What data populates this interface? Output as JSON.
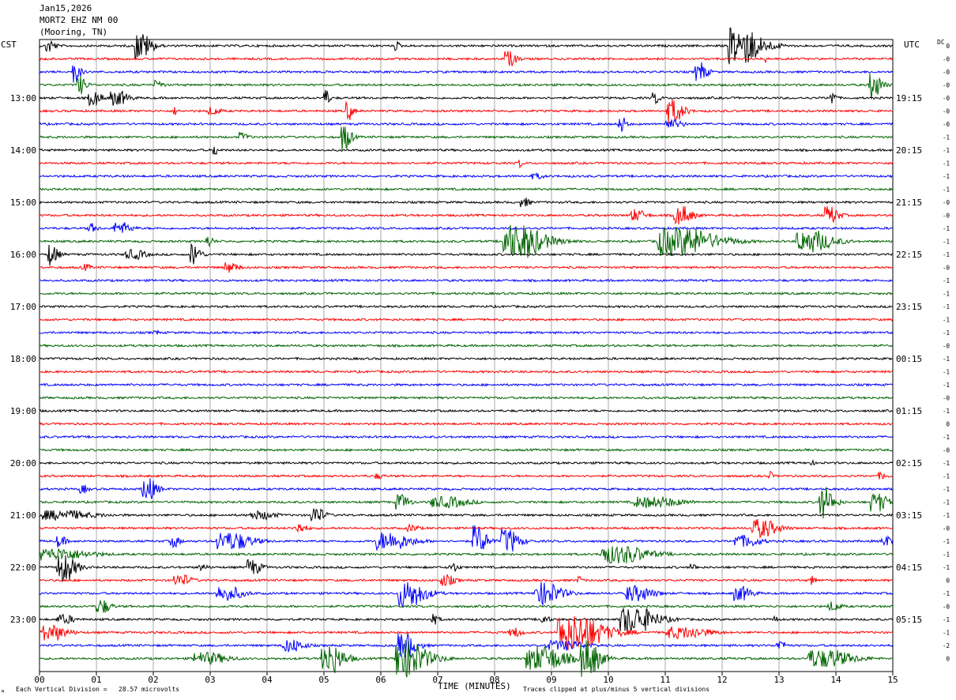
{
  "header": {
    "date": "Jan15,2026",
    "station": "MORT2 EHZ NM 00",
    "location": "(Mooring, TN)"
  },
  "left_timezone": "CST",
  "right_timezone": "UTC",
  "dc_label": "DC",
  "footer": {
    "division_note": "Each Vertical Division =   28.57 microvolts",
    "clip_note": "Traces clipped at plus/minus 5 vertical divisions",
    "logo_mark": "¤"
  },
  "chart_data": {
    "type": "line",
    "title": "",
    "xlabel": "TIME (MINUTES)",
    "x_ticks": [
      "00",
      "01",
      "02",
      "03",
      "04",
      "05",
      "06",
      "07",
      "08",
      "09",
      "10",
      "11",
      "12",
      "13",
      "14",
      "15"
    ],
    "xlim": [
      0,
      15
    ],
    "row_count": 48,
    "row_minutes": 15,
    "row_colors": [
      "#000000",
      "#ff0000",
      "#0000ff",
      "#006400"
    ],
    "left_hour_labels": [
      {
        "row": 4,
        "label": "13:00"
      },
      {
        "row": 8,
        "label": "14:00"
      },
      {
        "row": 12,
        "label": "15:00"
      },
      {
        "row": 16,
        "label": "16:00"
      },
      {
        "row": 20,
        "label": "17:00"
      },
      {
        "row": 24,
        "label": "18:00"
      },
      {
        "row": 28,
        "label": "19:00"
      },
      {
        "row": 32,
        "label": "20:00"
      },
      {
        "row": 36,
        "label": "21:00"
      },
      {
        "row": 40,
        "label": "22:00"
      },
      {
        "row": 44,
        "label": "23:00"
      }
    ],
    "right_hour_labels": [
      {
        "row": 4,
        "label": "19:15"
      },
      {
        "row": 8,
        "label": "20:15"
      },
      {
        "row": 12,
        "label": "21:15"
      },
      {
        "row": 16,
        "label": "22:15"
      },
      {
        "row": 20,
        "label": "23:15"
      },
      {
        "row": 24,
        "label": "00:15"
      },
      {
        "row": 28,
        "label": "01:15"
      },
      {
        "row": 32,
        "label": "02:15"
      },
      {
        "row": 36,
        "label": "03:15"
      },
      {
        "row": 40,
        "label": "04:15"
      },
      {
        "row": 44,
        "label": "05:15"
      }
    ],
    "dc_offsets": [
      "0",
      "-0",
      "-0",
      "-0",
      "-0",
      "-0",
      "-0",
      "-1",
      "-1",
      "-1",
      "-1",
      "-1",
      "-0",
      "-0",
      "-1",
      "-1",
      "-1",
      "-0",
      "-1",
      "-1",
      "-1",
      "-1",
      "-1",
      "-0",
      "-1",
      "-1",
      "-1",
      "-0",
      "-1",
      "0",
      "-1",
      "-0",
      "-1",
      "-1",
      "-1",
      "-1",
      "-1",
      "-0",
      "-1",
      "-1",
      "-1",
      "0",
      "-1",
      "-0",
      "-1",
      "-1",
      "-2",
      "0"
    ],
    "events": [
      {
        "row": 0,
        "minute": 0.2,
        "amp": 1.2,
        "dur": 0.2
      },
      {
        "row": 0,
        "minute": 1.85,
        "amp": 2.2,
        "dur": 0.35
      },
      {
        "row": 0,
        "minute": 6.3,
        "amp": 0.8,
        "dur": 0.1
      },
      {
        "row": 0,
        "minute": 12.45,
        "amp": 3.5,
        "dur": 0.7
      },
      {
        "row": 1,
        "minute": 8.3,
        "amp": 1.3,
        "dur": 0.25
      },
      {
        "row": 1,
        "minute": 12.8,
        "amp": 0.7,
        "dur": 0.1
      },
      {
        "row": 2,
        "minute": 0.65,
        "amp": 2.0,
        "dur": 0.15
      },
      {
        "row": 2,
        "minute": 11.65,
        "amp": 1.6,
        "dur": 0.25
      },
      {
        "row": 3,
        "minute": 0.75,
        "amp": 1.5,
        "dur": 0.2
      },
      {
        "row": 3,
        "minute": 2.1,
        "amp": 0.8,
        "dur": 0.2
      },
      {
        "row": 3,
        "minute": 14.7,
        "amp": 2.4,
        "dur": 0.25
      },
      {
        "row": 4,
        "minute": 1.0,
        "amp": 1.2,
        "dur": 0.3
      },
      {
        "row": 4,
        "minute": 1.45,
        "amp": 1.2,
        "dur": 0.4
      },
      {
        "row": 4,
        "minute": 5.05,
        "amp": 1.5,
        "dur": 0.1
      },
      {
        "row": 4,
        "minute": 10.85,
        "amp": 1.0,
        "dur": 0.15
      },
      {
        "row": 4,
        "minute": 13.95,
        "amp": 1.3,
        "dur": 0.1
      },
      {
        "row": 5,
        "minute": 2.4,
        "amp": 0.7,
        "dur": 0.1
      },
      {
        "row": 5,
        "minute": 3.1,
        "amp": 0.7,
        "dur": 0.3
      },
      {
        "row": 5,
        "minute": 5.45,
        "amp": 1.6,
        "dur": 0.15
      },
      {
        "row": 5,
        "minute": 11.2,
        "amp": 2.0,
        "dur": 0.35
      },
      {
        "row": 6,
        "minute": 10.25,
        "amp": 1.5,
        "dur": 0.15
      },
      {
        "row": 6,
        "minute": 11.2,
        "amp": 0.8,
        "dur": 0.4
      },
      {
        "row": 7,
        "minute": 3.6,
        "amp": 0.8,
        "dur": 0.2
      },
      {
        "row": 7,
        "minute": 5.4,
        "amp": 2.2,
        "dur": 0.2
      },
      {
        "row": 8,
        "minute": 3.1,
        "amp": 1.0,
        "dur": 0.1
      },
      {
        "row": 9,
        "minute": 8.45,
        "amp": 0.8,
        "dur": 0.1
      },
      {
        "row": 10,
        "minute": 8.8,
        "amp": 0.5,
        "dur": 0.3
      },
      {
        "row": 12,
        "minute": 8.55,
        "amp": 0.8,
        "dur": 0.2
      },
      {
        "row": 13,
        "minute": 10.55,
        "amp": 1.0,
        "dur": 0.35
      },
      {
        "row": 13,
        "minute": 11.35,
        "amp": 1.5,
        "dur": 0.4
      },
      {
        "row": 13,
        "minute": 13.95,
        "amp": 1.5,
        "dur": 0.3
      },
      {
        "row": 14,
        "minute": 0.95,
        "amp": 0.8,
        "dur": 0.2
      },
      {
        "row": 14,
        "minute": 1.5,
        "amp": 1.0,
        "dur": 0.4
      },
      {
        "row": 15,
        "minute": 3.0,
        "amp": 1.0,
        "dur": 0.15
      },
      {
        "row": 15,
        "minute": 8.6,
        "amp": 2.8,
        "dur": 0.9
      },
      {
        "row": 15,
        "minute": 11.5,
        "amp": 2.3,
        "dur": 1.3
      },
      {
        "row": 15,
        "minute": 13.7,
        "amp": 1.8,
        "dur": 0.8
      },
      {
        "row": 16,
        "minute": 0.25,
        "amp": 1.8,
        "dur": 0.2
      },
      {
        "row": 16,
        "minute": 1.75,
        "amp": 0.8,
        "dur": 0.5
      },
      {
        "row": 16,
        "minute": 2.75,
        "amp": 2.0,
        "dur": 0.2
      },
      {
        "row": 17,
        "minute": 0.85,
        "amp": 0.6,
        "dur": 0.2
      },
      {
        "row": 17,
        "minute": 3.4,
        "amp": 0.9,
        "dur": 0.3
      },
      {
        "row": 22,
        "minute": 2.05,
        "amp": 0.6,
        "dur": 0.1
      },
      {
        "row": 32,
        "minute": 13.6,
        "amp": 0.4,
        "dur": 0.1
      },
      {
        "row": 33,
        "minute": 6.0,
        "amp": 0.5,
        "dur": 0.2
      },
      {
        "row": 33,
        "minute": 12.85,
        "amp": 0.8,
        "dur": 0.1
      },
      {
        "row": 33,
        "minute": 14.85,
        "amp": 0.6,
        "dur": 0.2
      },
      {
        "row": 34,
        "minute": 0.8,
        "amp": 0.7,
        "dur": 0.2
      },
      {
        "row": 34,
        "minute": 1.95,
        "amp": 2.0,
        "dur": 0.3
      },
      {
        "row": 35,
        "minute": 6.4,
        "amp": 1.3,
        "dur": 0.3
      },
      {
        "row": 35,
        "minute": 7.3,
        "amp": 0.9,
        "dur": 0.9
      },
      {
        "row": 35,
        "minute": 11.0,
        "amp": 0.9,
        "dur": 1.1
      },
      {
        "row": 35,
        "minute": 13.85,
        "amp": 2.6,
        "dur": 0.3
      },
      {
        "row": 35,
        "minute": 14.8,
        "amp": 1.5,
        "dur": 0.4
      },
      {
        "row": 36,
        "minute": 0.6,
        "amp": 0.8,
        "dur": 1.4
      },
      {
        "row": 36,
        "minute": 4.0,
        "amp": 0.7,
        "dur": 0.6
      },
      {
        "row": 36,
        "minute": 4.9,
        "amp": 1.5,
        "dur": 0.3
      },
      {
        "row": 37,
        "minute": 4.6,
        "amp": 0.9,
        "dur": 0.3
      },
      {
        "row": 37,
        "minute": 6.6,
        "amp": 0.6,
        "dur": 0.3
      },
      {
        "row": 37,
        "minute": 12.8,
        "amp": 1.5,
        "dur": 0.6
      },
      {
        "row": 38,
        "minute": 0.4,
        "amp": 1.0,
        "dur": 0.2
      },
      {
        "row": 38,
        "minute": 2.4,
        "amp": 1.0,
        "dur": 0.2
      },
      {
        "row": 38,
        "minute": 3.5,
        "amp": 1.5,
        "dur": 0.8
      },
      {
        "row": 38,
        "minute": 6.3,
        "amp": 1.5,
        "dur": 0.8
      },
      {
        "row": 38,
        "minute": 7.75,
        "amp": 2.5,
        "dur": 0.3
      },
      {
        "row": 38,
        "minute": 8.3,
        "amp": 2.0,
        "dur": 0.4
      },
      {
        "row": 38,
        "minute": 12.5,
        "amp": 1.0,
        "dur": 0.6
      },
      {
        "row": 38,
        "minute": 14.9,
        "amp": 1.0,
        "dur": 0.2
      },
      {
        "row": 39,
        "minute": 0.5,
        "amp": 1.0,
        "dur": 1.4
      },
      {
        "row": 39,
        "minute": 10.4,
        "amp": 1.5,
        "dur": 1.1
      },
      {
        "row": 40,
        "minute": 0.5,
        "amp": 2.4,
        "dur": 0.4
      },
      {
        "row": 40,
        "minute": 2.9,
        "amp": 0.6,
        "dur": 0.2
      },
      {
        "row": 40,
        "minute": 3.8,
        "amp": 1.3,
        "dur": 0.3
      },
      {
        "row": 40,
        "minute": 7.3,
        "amp": 0.8,
        "dur": 0.2
      },
      {
        "row": 40,
        "minute": 11.5,
        "amp": 0.6,
        "dur": 0.2
      },
      {
        "row": 41,
        "minute": 2.55,
        "amp": 1.0,
        "dur": 0.4
      },
      {
        "row": 41,
        "minute": 7.2,
        "amp": 1.0,
        "dur": 0.3
      },
      {
        "row": 41,
        "minute": 9.5,
        "amp": 0.7,
        "dur": 0.1
      },
      {
        "row": 41,
        "minute": 13.6,
        "amp": 1.0,
        "dur": 0.1
      },
      {
        "row": 42,
        "minute": 3.4,
        "amp": 1.2,
        "dur": 0.6
      },
      {
        "row": 42,
        "minute": 6.6,
        "amp": 2.2,
        "dur": 0.6
      },
      {
        "row": 42,
        "minute": 9.0,
        "amp": 1.8,
        "dur": 0.6
      },
      {
        "row": 42,
        "minute": 10.6,
        "amp": 1.3,
        "dur": 0.6
      },
      {
        "row": 42,
        "minute": 12.4,
        "amp": 1.2,
        "dur": 0.4
      },
      {
        "row": 43,
        "minute": 1.15,
        "amp": 1.2,
        "dur": 0.3
      },
      {
        "row": 43,
        "minute": 14.0,
        "amp": 0.8,
        "dur": 0.3
      },
      {
        "row": 44,
        "minute": 0.5,
        "amp": 0.8,
        "dur": 0.4
      },
      {
        "row": 44,
        "minute": 6.95,
        "amp": 0.9,
        "dur": 0.2
      },
      {
        "row": 44,
        "minute": 8.9,
        "amp": 0.8,
        "dur": 0.2
      },
      {
        "row": 44,
        "minute": 10.6,
        "amp": 2.2,
        "dur": 0.8
      },
      {
        "row": 44,
        "minute": 12.95,
        "amp": 0.6,
        "dur": 0.1
      },
      {
        "row": 45,
        "minute": 0.3,
        "amp": 1.3,
        "dur": 0.6
      },
      {
        "row": 45,
        "minute": 8.4,
        "amp": 0.8,
        "dur": 0.3
      },
      {
        "row": 45,
        "minute": 9.6,
        "amp": 3.2,
        "dur": 1.0
      },
      {
        "row": 45,
        "minute": 11.5,
        "amp": 1.0,
        "dur": 1.0
      },
      {
        "row": 46,
        "minute": 4.5,
        "amp": 1.1,
        "dur": 0.5
      },
      {
        "row": 46,
        "minute": 6.5,
        "amp": 2.0,
        "dur": 0.4
      },
      {
        "row": 46,
        "minute": 9.4,
        "amp": 0.8,
        "dur": 1.0
      },
      {
        "row": 46,
        "minute": 13.05,
        "amp": 0.9,
        "dur": 0.2
      },
      {
        "row": 47,
        "minute": 3.1,
        "amp": 1.0,
        "dur": 0.8
      },
      {
        "row": 47,
        "minute": 5.2,
        "amp": 2.4,
        "dur": 0.5
      },
      {
        "row": 47,
        "minute": 6.6,
        "amp": 3.0,
        "dur": 0.7
      },
      {
        "row": 47,
        "minute": 9.0,
        "amp": 2.0,
        "dur": 0.9
      },
      {
        "row": 47,
        "minute": 9.7,
        "amp": 3.5,
        "dur": 0.4
      },
      {
        "row": 47,
        "minute": 14.0,
        "amp": 1.5,
        "dur": 1.0
      }
    ]
  }
}
